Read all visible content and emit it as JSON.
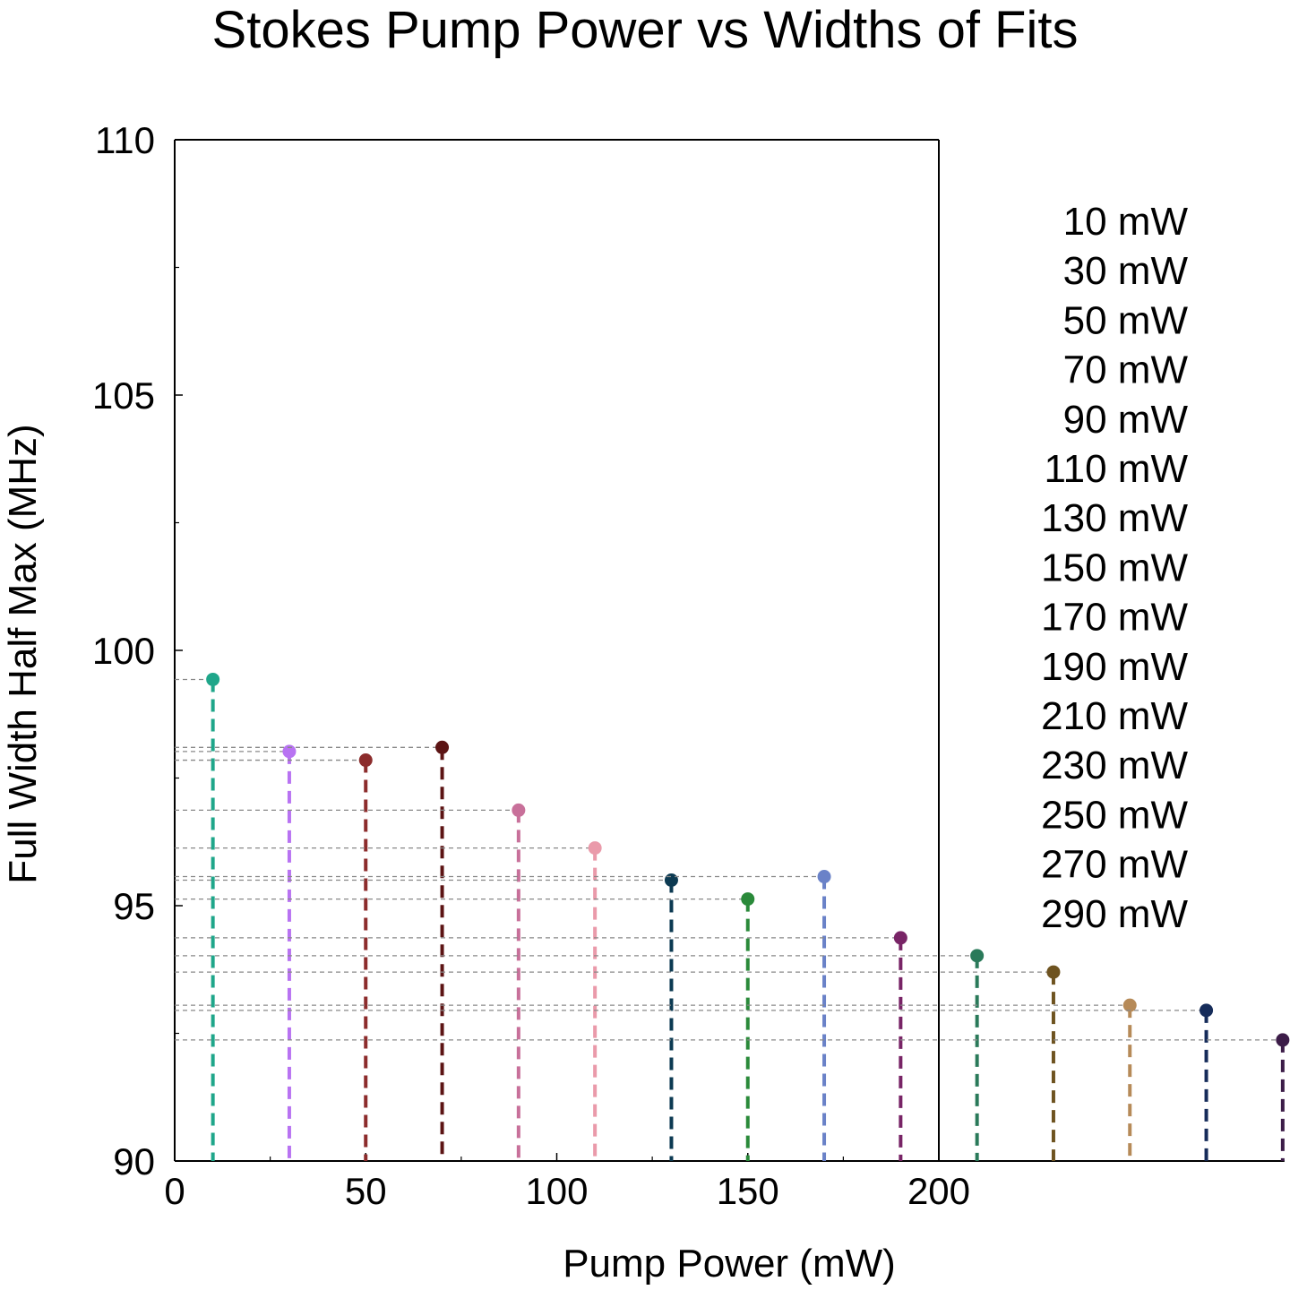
{
  "chart_data": {
    "type": "scatter",
    "title": "Stokes Pump Power vs Widths of Fits",
    "xlabel": "Pump Power (mW)",
    "ylabel": "Full Width Half Max (MHz)",
    "xlim": [
      0,
      200
    ],
    "ylim": [
      90,
      110
    ],
    "xticks": [
      0,
      50,
      100,
      150,
      200
    ],
    "yticks": [
      90,
      95,
      100,
      105,
      110
    ],
    "grid": false,
    "legend_position": "right",
    "series": [
      {
        "name": "10 mW",
        "x": 10,
        "y": 99.43,
        "color": "#1fa68a"
      },
      {
        "name": "30 mW",
        "x": 30,
        "y": 98.02,
        "color": "#b873f2"
      },
      {
        "name": "50 mW",
        "x": 50,
        "y": 97.85,
        "color": "#8c2c2c"
      },
      {
        "name": "70 mW",
        "x": 70,
        "y": 98.1,
        "color": "#5c1414"
      },
      {
        "name": "90 mW",
        "x": 90,
        "y": 96.87,
        "color": "#c8709a"
      },
      {
        "name": "110 mW",
        "x": 110,
        "y": 96.13,
        "color": "#ea9aaa"
      },
      {
        "name": "130 mW",
        "x": 130,
        "y": 95.5,
        "color": "#0c3a52"
      },
      {
        "name": "150 mW",
        "x": 150,
        "y": 95.13,
        "color": "#2a8a3a"
      },
      {
        "name": "170 mW",
        "x": 170,
        "y": 95.57,
        "color": "#6a82c8"
      },
      {
        "name": "190 mW",
        "x": 190,
        "y": 94.37,
        "color": "#782466"
      },
      {
        "name": "210 mW",
        "x": 210,
        "y": 94.02,
        "color": "#2a7a5a"
      },
      {
        "name": "230 mW",
        "x": 230,
        "y": 93.7,
        "color": "#6e5320"
      },
      {
        "name": "250 mW",
        "x": 250,
        "y": 93.05,
        "color": "#b68a58"
      },
      {
        "name": "270 mW",
        "x": 270,
        "y": 92.95,
        "color": "#162c5a"
      },
      {
        "name": "290 mW",
        "x": 290,
        "y": 92.37,
        "color": "#3c1c48"
      }
    ]
  }
}
